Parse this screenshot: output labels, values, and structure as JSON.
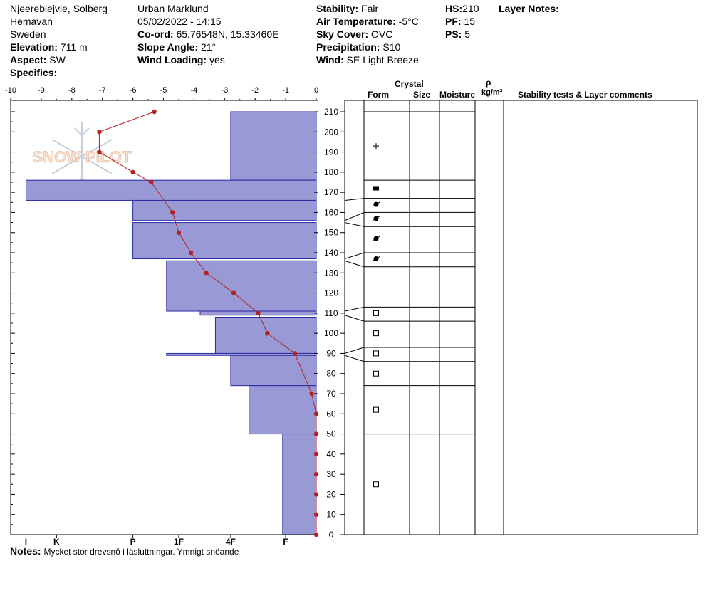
{
  "header": {
    "location": "Njeerebiejvie, Solberg",
    "area": "Hemavan",
    "country": "Sweden",
    "elevation_label": "Elevation:",
    "elevation_value": "711 m",
    "aspect_label": "Aspect:",
    "aspect_value": "SW",
    "specifics_label": "Specifics:",
    "observer": "Urban Marklund",
    "datetime": "05/02/2022 - 14:15",
    "coord_label": "Co-ord:",
    "coord_value": "65.76548N, 15.33460E",
    "slope_label": "Slope Angle:",
    "slope_value": "21°",
    "wind_loading_label": "Wind Loading:",
    "wind_loading_value": "yes",
    "stability_label": "Stability:",
    "stability_value": "Fair",
    "air_temp_label": "Air Temperature:",
    "air_temp_value": "-5°C",
    "sky_label": "Sky Cover:",
    "sky_value": "OVC",
    "precip_label": "Precipitation:",
    "precip_value": "S10",
    "wind_label": "Wind:",
    "wind_value": "SE  Light Breeze",
    "hs_label": "HS:",
    "hs_value": "210",
    "pf_label": "PF:",
    "pf_value": "15",
    "ps_label": "PS:",
    "ps_value": "5",
    "layer_notes_label": "Layer Notes:"
  },
  "columns": {
    "crystal": "Crystal",
    "form": "Form",
    "size": "Size",
    "moisture": "Moisture",
    "rho": "ρ",
    "density_unit": "kg/m³",
    "comments": "Stability tests & Layer comments"
  },
  "notes_label": "Notes:",
  "notes_value": "Mycket stor drevsnö i läsluttningar. Ymnigt snöande",
  "watermark": "SNOW PILOT",
  "colors": {
    "hardness_fill": "#9999d6",
    "hardness_stroke": "#2a2aa0",
    "temp_line": "#b22222"
  },
  "chart_data": {
    "type": "snow-profile",
    "temperature_axis": {
      "ticks": [
        -10,
        -9,
        -8,
        -7,
        -6,
        -5,
        -4,
        -3,
        -2,
        -1,
        0
      ],
      "range": [
        -10,
        0
      ]
    },
    "height_axis": {
      "ticks": [
        0,
        10,
        20,
        30,
        40,
        50,
        60,
        70,
        80,
        90,
        100,
        110,
        120,
        130,
        140,
        150,
        160,
        170,
        180,
        190,
        200,
        210
      ],
      "range": [
        0,
        210
      ]
    },
    "hardness_axis": {
      "labels": [
        "I",
        "K",
        "P",
        "1F",
        "4F",
        "F"
      ],
      "label_values": [
        9.5,
        8.5,
        6.0,
        4.5,
        2.8,
        1.0
      ]
    },
    "hardness_layers": [
      {
        "bottom": 176,
        "top": 210,
        "hardness": 2.8
      },
      {
        "bottom": 166,
        "top": 176,
        "hardness": 9.5
      },
      {
        "bottom": 156,
        "top": 166,
        "hardness": 6.0
      },
      {
        "bottom": 137,
        "top": 155,
        "hardness": 6.0
      },
      {
        "bottom": 111,
        "top": 136,
        "hardness": 4.9
      },
      {
        "bottom": 109,
        "top": 111,
        "hardness": 3.8
      },
      {
        "bottom": 90,
        "top": 108,
        "hardness": 3.3
      },
      {
        "bottom": 89,
        "top": 90,
        "hardness": 4.9
      },
      {
        "bottom": 74,
        "top": 89,
        "hardness": 2.8
      },
      {
        "bottom": 50,
        "top": 74,
        "hardness": 2.2
      },
      {
        "bottom": 0,
        "top": 50,
        "hardness": 1.1
      }
    ],
    "temperature_profile": [
      {
        "height": 210,
        "temp": -5.3
      },
      {
        "height": 200,
        "temp": -7.1
      },
      {
        "height": 190,
        "temp": -7.1
      },
      {
        "height": 180,
        "temp": -6.0
      },
      {
        "height": 175,
        "temp": -5.4
      },
      {
        "height": 160,
        "temp": -4.7
      },
      {
        "height": 150,
        "temp": -4.5
      },
      {
        "height": 140,
        "temp": -4.1
      },
      {
        "height": 130,
        "temp": -3.6
      },
      {
        "height": 120,
        "temp": -2.7
      },
      {
        "height": 110,
        "temp": -1.9
      },
      {
        "height": 100,
        "temp": -1.6
      },
      {
        "height": 90,
        "temp": -0.7
      },
      {
        "height": 70,
        "temp": -0.15
      },
      {
        "height": 60,
        "temp": 0
      },
      {
        "height": 50,
        "temp": 0
      },
      {
        "height": 40,
        "temp": 0
      },
      {
        "height": 30,
        "temp": 0
      },
      {
        "height": 20,
        "temp": 0
      },
      {
        "height": 10,
        "temp": 0
      },
      {
        "height": 0,
        "temp": 0
      }
    ],
    "layer_boundaries": [
      210,
      176,
      167,
      160,
      153,
      140,
      133,
      113,
      106,
      93,
      86,
      74,
      50
    ],
    "grain_symbols": [
      {
        "height": 193,
        "form": "plus"
      },
      {
        "height": 172,
        "form": "filled-rect"
      },
      {
        "height": 164,
        "form": "filled-circle"
      },
      {
        "height": 157,
        "form": "filled-circle"
      },
      {
        "height": 147,
        "form": "filled-circle"
      },
      {
        "height": 137,
        "form": "filled-circle"
      },
      {
        "height": 110,
        "form": "square"
      },
      {
        "height": 100,
        "form": "square"
      },
      {
        "height": 90,
        "form": "square"
      },
      {
        "height": 80,
        "form": "square"
      },
      {
        "height": 62,
        "form": "square"
      },
      {
        "height": 25,
        "form": "square"
      }
    ]
  }
}
